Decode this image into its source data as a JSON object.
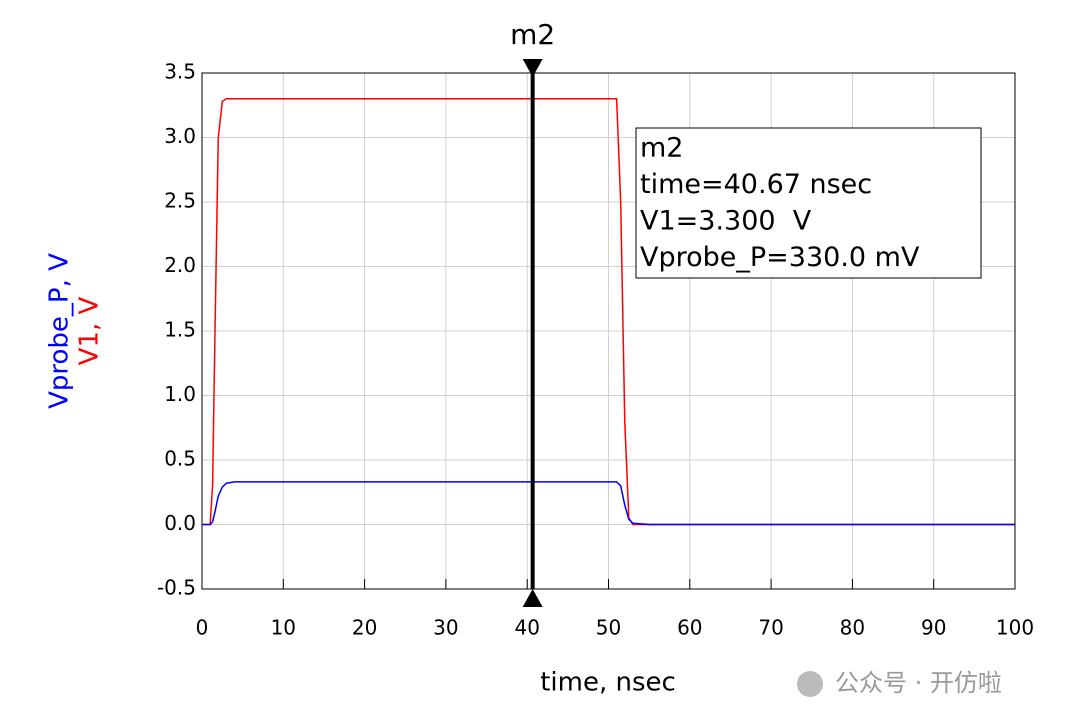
{
  "chart_data": {
    "type": "line",
    "x_label": "time, nsec",
    "y_label_parts": [
      "Vprobe_P, V",
      "V1, V"
    ],
    "x": [
      0,
      1,
      1.3,
      1.6,
      2,
      2.5,
      3,
      4,
      5,
      50,
      51,
      51.5,
      52,
      52.5,
      53,
      55,
      100
    ],
    "series": [
      {
        "name": "V1",
        "color": "#ff0000",
        "values": [
          0,
          0,
          0.3,
          1.5,
          3.0,
          3.28,
          3.3,
          3.3,
          3.3,
          3.3,
          3.3,
          2.5,
          0.8,
          0.05,
          0,
          0,
          0
        ]
      },
      {
        "name": "Vprobe_P",
        "color": "#0000ff",
        "values": [
          0,
          0,
          0.02,
          0.1,
          0.22,
          0.29,
          0.32,
          0.33,
          0.33,
          0.33,
          0.33,
          0.3,
          0.15,
          0.04,
          0.01,
          0,
          0
        ]
      }
    ],
    "xlim": [
      0,
      100
    ],
    "xticks": [
      0,
      10,
      20,
      30,
      40,
      50,
      60,
      70,
      80,
      90,
      100
    ],
    "ylim": [
      -0.5,
      3.5
    ],
    "yticks": [
      -0.5,
      {
        "value": 0,
        "label": "0.0"
      },
      0.5,
      {
        "value": 1,
        "label": "1.0"
      },
      1.5,
      {
        "value": 2,
        "label": "2.0"
      },
      2.5,
      {
        "value": 3,
        "label": "3.0"
      },
      3.5
    ],
    "grid": true,
    "marker": {
      "name": "m2",
      "x": 40.67,
      "readout": [
        "m2",
        "time=40.67 nsec",
        "V1=3.300  V",
        "Vprobe_P=330.0 mV"
      ]
    }
  },
  "watermark": "公众号 · 开仿啦"
}
